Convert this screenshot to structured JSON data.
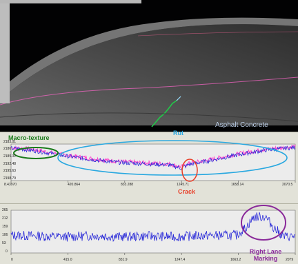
{
  "scan_view": {
    "surface_label": "Asphalt Concrete",
    "colors": {
      "background": "#020203",
      "pavement": "#5a5a5a",
      "edge_line": "#ff66cc",
      "trace_line": "#22c84a",
      "label": "#b9cce6"
    }
  },
  "annotations": {
    "macro_texture": {
      "text": "Macro-texture",
      "color": "#1a7a1a"
    },
    "rut": {
      "text": "Rut",
      "color": "#2aa8e0"
    },
    "crack": {
      "text": "Crack",
      "color": "#e8402a"
    },
    "right_lane_marking": {
      "line1": "Right Lane",
      "line2": "Marking",
      "color": "#8a2a9a"
    }
  },
  "chart_data": [
    {
      "type": "line",
      "ylim": [
        2105.79,
        2183.01
      ],
      "y_ticks": [
        "2183.01",
        "2186",
        "2189.32",
        "2192.48",
        "2195.63",
        "2198.79"
      ],
      "x_ticks": [
        "8.43970",
        "420.864",
        "833.288",
        "1245.71",
        "1658.14",
        "2070.5"
      ],
      "xlim": [
        8.4397,
        2070.5
      ],
      "series": [
        {
          "color": "#ff44cc",
          "points": [
            [
              8,
              2175
            ],
            [
              100,
              2174
            ],
            [
              200,
              2170
            ],
            [
              400,
              2160
            ],
            [
              600,
              2152
            ],
            [
              800,
              2146
            ],
            [
              1000,
              2143
            ],
            [
              1150,
              2141
            ],
            [
              1245,
              2135
            ],
            [
              1300,
              2142
            ],
            [
              1450,
              2150
            ],
            [
              1650,
              2162
            ],
            [
              1850,
              2172
            ],
            [
              2070,
              2178
            ]
          ]
        },
        {
          "color": "#2a2ad8",
          "points": [
            [
              8,
              2174
            ],
            [
              100,
              2172
            ],
            [
              200,
              2168
            ],
            [
              400,
              2158
            ],
            [
              600,
              2150
            ],
            [
              800,
              2144
            ],
            [
              1000,
              2141
            ],
            [
              1150,
              2139
            ],
            [
              1245,
              2132
            ],
            [
              1300,
              2140
            ],
            [
              1450,
              2148
            ],
            [
              1650,
              2160
            ],
            [
              1850,
              2170
            ],
            [
              2070,
              2176
            ]
          ]
        }
      ]
    },
    {
      "type": "line",
      "ylim": [
        0,
        265
      ],
      "y_ticks": [
        "265",
        "212",
        "159",
        "106",
        "53",
        "0"
      ],
      "x_ticks": [
        "0",
        "415.0",
        "831.9",
        "1247.4",
        "1663.2",
        "2079"
      ],
      "xlim": [
        0,
        2079
      ],
      "series": [
        {
          "color": "#2a2ad8",
          "points": [
            [
              0,
              110
            ],
            [
              200,
              105
            ],
            [
              400,
              100
            ],
            [
              600,
              108
            ],
            [
              800,
              100
            ],
            [
              1000,
              105
            ],
            [
              1200,
              100
            ],
            [
              1400,
              108
            ],
            [
              1650,
              110
            ],
            [
              1720,
              160
            ],
            [
              1780,
              225
            ],
            [
              1860,
              225
            ],
            [
              1930,
              150
            ],
            [
              2000,
              100
            ],
            [
              2079,
              105
            ]
          ]
        }
      ]
    }
  ]
}
